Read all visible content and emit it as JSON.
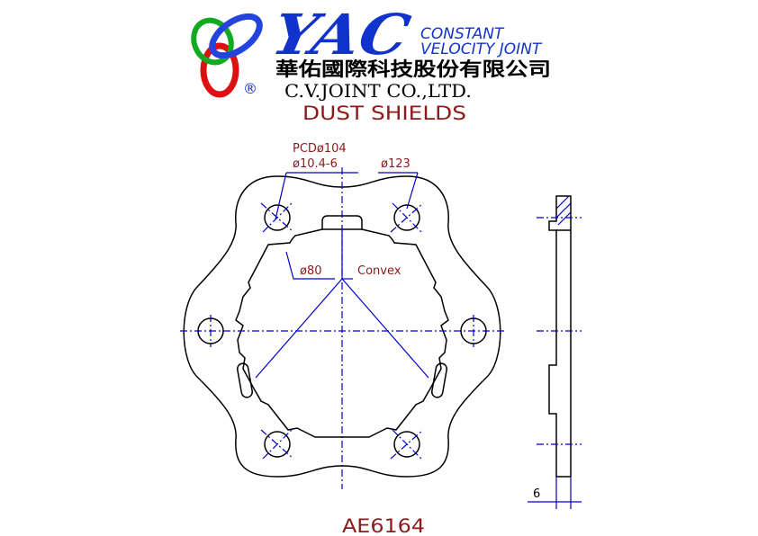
{
  "header": {
    "brand": "YAC",
    "tagline_line1": "CONSTANT",
    "tagline_line2": "VELOCITY JOINT",
    "company_chinese": "華佑國際科技股份有限公司",
    "company_english": "C.V.JOINT CO.,LTD.",
    "registered_mark": "®"
  },
  "drawing": {
    "title": "DUST SHIELDS",
    "part_number": "AE6164",
    "dimensions": {
      "pcd": "PCDø104",
      "bolt_hole": "ø10.4-6",
      "outer_diameter": "ø123",
      "inner_diameter": "ø80",
      "surface_note": "Convex",
      "thickness": "6"
    }
  },
  "colors": {
    "outline": "#000000",
    "dimension": "#0000cc",
    "label": "#8b1a1a",
    "brand_blue": "#1133cc",
    "logo_red": "#dd1111",
    "logo_green": "#11aa22",
    "logo_blue": "#2244dd"
  }
}
